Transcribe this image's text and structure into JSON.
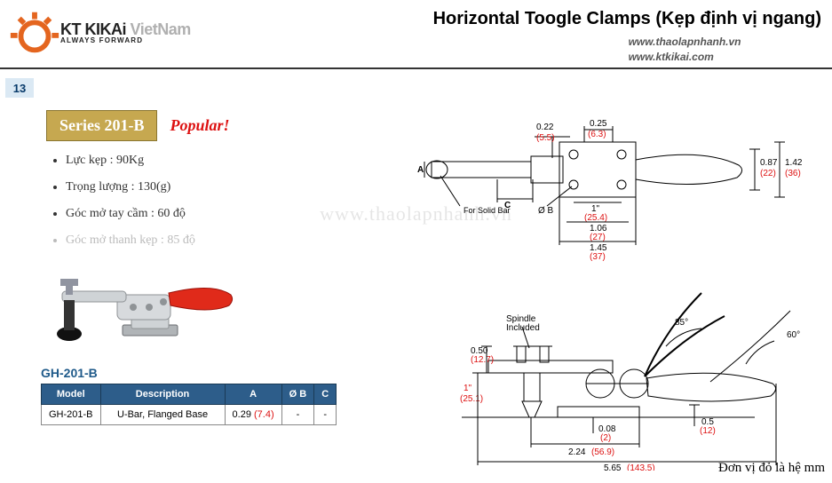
{
  "header": {
    "brand": "KT KIKAi",
    "brand_suffix": "VietNam",
    "tagline": "ALWAYS FORWARD",
    "title": "Horizontal Toogle Clamps (Kẹp định vị ngang)",
    "url1": "www.thaolapnhanh.vn",
    "url2": "www.ktkikai.com",
    "logo_colors": {
      "gear": "#e4651f",
      "teeth": "#e4651f"
    }
  },
  "page_number": "13",
  "series": {
    "label": "Series 201-B",
    "badge_bg": "#c6a850",
    "popular": "Popular!"
  },
  "specs": [
    {
      "text": "Lực kẹp : 90Kg",
      "dim": false
    },
    {
      "text": "Trọng lượng : 130(g)",
      "dim": false
    },
    {
      "text": "Góc mở tay cầm : 60 độ",
      "dim": false
    },
    {
      "text": "Góc mở thanh kẹp : 85 độ",
      "dim": true
    }
  ],
  "model_code": "GH-201-B",
  "table": {
    "columns": [
      "Model",
      "Description",
      "A",
      "Ø B",
      "C"
    ],
    "rows": [
      [
        "GH-201-B",
        "U-Bar, Flanged Base",
        "0.29|(7.4)",
        "-",
        "-"
      ]
    ],
    "header_bg": "#2d5d8a"
  },
  "product": {
    "handle_color": "#e02a1a",
    "metal_color": "#cfd3d6",
    "metal_dark": "#8f9396",
    "rubber_color": "#111"
  },
  "diagram": {
    "stroke": "#000000",
    "red": "#d11",
    "top": {
      "d_025": "0.25",
      "d_025r": "(6.3)",
      "d_022": "0.22",
      "d_022r": "(5.5)",
      "d_087": "0.87",
      "d_087r": "(22)",
      "d_142": "1.42",
      "d_142r": "(36)",
      "d_1in": "1\"",
      "d_1inr": "(25.4)",
      "d_106": "1.06",
      "d_106r": "(27)",
      "d_145": "1.45",
      "d_145r": "(37)",
      "label_A": "A",
      "label_OB": "Ø B",
      "label_C": "C",
      "for_solid": "For Solid Bar"
    },
    "bottom": {
      "spindle": "Spindle\nIncluded",
      "ang85": "85°",
      "ang60": "60°",
      "d_050": "0.50",
      "d_050r": "(12.7)",
      "d_1in": "1\"",
      "d_1inr": "(25.1)",
      "d_008": "0.08",
      "d_008r": "(2)",
      "d_05": "0.5",
      "d_05r": "(12)",
      "d_224": "2.24",
      "d_224r": "(56.9)",
      "d_565": "5.65",
      "d_565r": "(143.5)"
    }
  },
  "unit_note": "Đơn vị đỏ là hệ mm",
  "watermark": "www.thaolapnhanh.vn"
}
